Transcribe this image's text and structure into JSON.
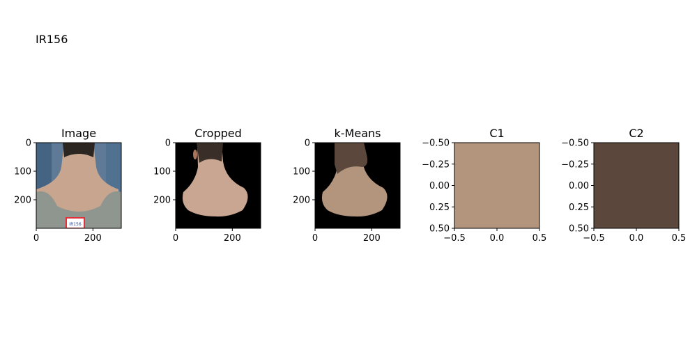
{
  "figure_title": "IR156",
  "chart_data": [
    {
      "type": "image",
      "title": "Image",
      "xticks": [
        "0",
        "200"
      ],
      "yticks": [
        "0",
        "100",
        "200"
      ],
      "xlim": [
        0,
        300
      ],
      "ylim": [
        300,
        0
      ],
      "label_text": "IR156",
      "label_frame_color": "#e0323c",
      "background_color": "#5f7a96",
      "skin_color": "#c7a58e",
      "hair_color": "#2b2622",
      "shirt_color": "#8f968f"
    },
    {
      "type": "image",
      "title": "Cropped",
      "xticks": [
        "0",
        "200"
      ],
      "yticks": [
        "0",
        "100",
        "200"
      ],
      "xlim": [
        0,
        300
      ],
      "ylim": [
        300,
        0
      ],
      "background_color": "#000000",
      "skin_color": "#c8a691",
      "hair_color": "#3a2f28"
    },
    {
      "type": "image",
      "title": "k-Means",
      "xticks": [
        "0",
        "200"
      ],
      "yticks": [
        "0",
        "100",
        "200"
      ],
      "xlim": [
        0,
        300
      ],
      "ylim": [
        300,
        0
      ],
      "background_color": "#000000",
      "cluster_colors": [
        "#b3957d",
        "#5b473c"
      ]
    },
    {
      "type": "heatmap",
      "title": "C1",
      "xticks": [
        "−0.5",
        "0.0",
        "0.5"
      ],
      "yticks": [
        "−0.50",
        "−0.25",
        "0.00",
        "0.25",
        "0.50"
      ],
      "xlim": [
        -0.5,
        0.5
      ],
      "ylim": [
        0.5,
        -0.5
      ],
      "color": "#b3957d"
    },
    {
      "type": "heatmap",
      "title": "C2",
      "xticks": [
        "−0.5",
        "0.0",
        "0.5"
      ],
      "yticks": [
        "−0.50",
        "−0.25",
        "0.00",
        "0.25",
        "0.50"
      ],
      "xlim": [
        -0.5,
        0.5
      ],
      "ylim": [
        0.5,
        -0.5
      ],
      "color": "#5b473c"
    }
  ]
}
